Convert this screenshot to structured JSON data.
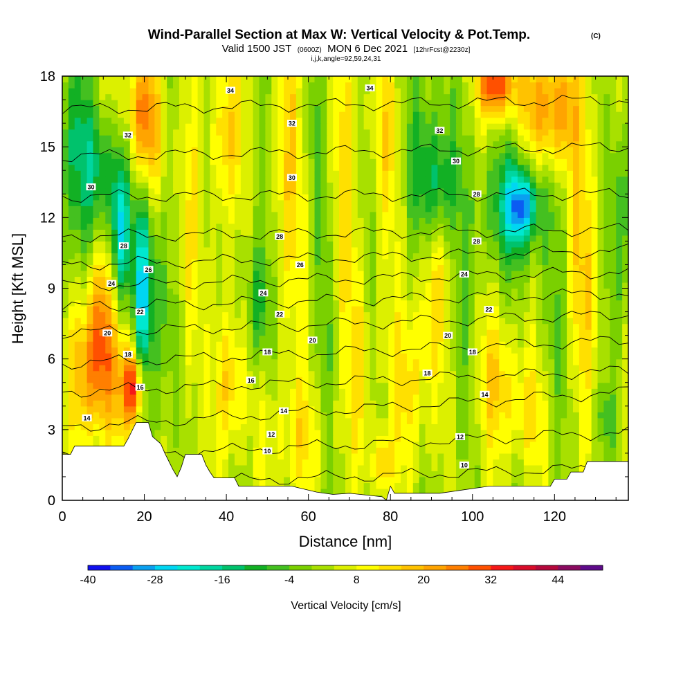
{
  "chart_data": {
    "type": "heatmap",
    "title": "Wind-Parallel Section at Max W: Vertical Velocity & Pot.Temp.",
    "title_mark": "(C)",
    "subtitle": "Valid 1500 JST",
    "subtitle_zulu": "(0600Z)",
    "subtitle_date": "MON 6 Dec 2021",
    "subtitle_fcst": "[12hrFcst@2230z]",
    "subtitle2": "i,j,k,angle=92,59,24,31",
    "xlabel": "Distance [nm]",
    "ylabel": "Height [Kft MSL]",
    "xlim": [
      0,
      138
    ],
    "ylim": [
      0,
      18
    ],
    "x_ticks": [
      0,
      20,
      40,
      60,
      80,
      100,
      120
    ],
    "y_ticks": [
      0,
      3,
      6,
      9,
      12,
      15,
      18
    ],
    "colorbar": {
      "label": "Vertical Velocity [cm/s]",
      "min": -40,
      "max": 52,
      "step": 4,
      "tick_values": [
        -40,
        -28,
        -16,
        -4,
        8,
        20,
        32,
        44
      ],
      "tick_labels": [
        "-40",
        "-28",
        "-16",
        "-4",
        "8",
        "20",
        "32",
        "44"
      ],
      "colors": [
        "#1010ee",
        "#0b5cf2",
        "#0aa0f0",
        "#00d6f2",
        "#00e8d0",
        "#00d6a0",
        "#00c26c",
        "#12b024",
        "#44c020",
        "#7ad000",
        "#a8e000",
        "#dcf000",
        "#ffff00",
        "#ffe000",
        "#ffc200",
        "#ffa400",
        "#ff7f00",
        "#ff5000",
        "#f51818",
        "#d80c2a",
        "#b4083c",
        "#8a0a60",
        "#5e0a8a"
      ]
    },
    "theta_contours": [
      {
        "value": 10,
        "at_x_zero": 0.6,
        "at_x_end": 1.4
      },
      {
        "value": 12,
        "at_x_zero": 1.8,
        "at_x_end": 2.9
      },
      {
        "value": 14,
        "at_x_zero": 3.1,
        "at_x_end": 4.6
      },
      {
        "value": 16,
        "at_x_zero": 4.6,
        "at_x_end": 5.5
      },
      {
        "value": 18,
        "at_x_zero": 5.8,
        "at_x_end": 6.8
      },
      {
        "value": 20,
        "at_x_zero": 7.1,
        "at_x_end": 7.9
      },
      {
        "value": 22,
        "at_x_zero": 8.2,
        "at_x_end": 8.8
      },
      {
        "value": 24,
        "at_x_zero": 9.1,
        "at_x_end": 9.7
      },
      {
        "value": 26,
        "at_x_zero": 10.0,
        "at_x_end": 10.6
      },
      {
        "value": 28,
        "at_x_zero": 11.2,
        "at_x_end": 11.5
      },
      {
        "value": 30,
        "at_x_zero": 12.9,
        "at_x_end": 13.0
      },
      {
        "value": 32,
        "at_x_zero": 14.6,
        "at_x_end": 15.0
      },
      {
        "value": 34,
        "at_x_zero": 16.6,
        "at_x_end": 17.0
      }
    ],
    "contour_labels": [
      {
        "text": "34",
        "x": 41,
        "y": 17.4
      },
      {
        "text": "34",
        "x": 75,
        "y": 17.5
      },
      {
        "text": "32",
        "x": 16,
        "y": 15.5
      },
      {
        "text": "32",
        "x": 56,
        "y": 16.0
      },
      {
        "text": "32",
        "x": 92,
        "y": 15.7
      },
      {
        "text": "30",
        "x": 7,
        "y": 13.3
      },
      {
        "text": "30",
        "x": 56,
        "y": 13.7
      },
      {
        "text": "30",
        "x": 96,
        "y": 14.4
      },
      {
        "text": "28",
        "x": 15,
        "y": 10.8
      },
      {
        "text": "28",
        "x": 53,
        "y": 11.2
      },
      {
        "text": "28",
        "x": 101,
        "y": 13.0
      },
      {
        "text": "28",
        "x": 101,
        "y": 11.0
      },
      {
        "text": "26",
        "x": 21,
        "y": 9.8
      },
      {
        "text": "26",
        "x": 58,
        "y": 10.0
      },
      {
        "text": "24",
        "x": 12,
        "y": 9.2
      },
      {
        "text": "24",
        "x": 49,
        "y": 8.8
      },
      {
        "text": "24",
        "x": 98,
        "y": 9.6
      },
      {
        "text": "22",
        "x": 19,
        "y": 8.0
      },
      {
        "text": "22",
        "x": 53,
        "y": 7.9
      },
      {
        "text": "22",
        "x": 104,
        "y": 8.1
      },
      {
        "text": "20",
        "x": 11,
        "y": 7.1
      },
      {
        "text": "20",
        "x": 61,
        "y": 6.8
      },
      {
        "text": "20",
        "x": 94,
        "y": 7.0
      },
      {
        "text": "18",
        "x": 16,
        "y": 6.2
      },
      {
        "text": "18",
        "x": 50,
        "y": 6.3
      },
      {
        "text": "18",
        "x": 100,
        "y": 6.3
      },
      {
        "text": "18",
        "x": 89,
        "y": 5.4
      },
      {
        "text": "16",
        "x": 19,
        "y": 4.8
      },
      {
        "text": "16",
        "x": 46,
        "y": 5.1
      },
      {
        "text": "14",
        "x": 6,
        "y": 3.5
      },
      {
        "text": "14",
        "x": 54,
        "y": 3.8
      },
      {
        "text": "14",
        "x": 103,
        "y": 4.5
      },
      {
        "text": "12",
        "x": 51,
        "y": 2.8
      },
      {
        "text": "12",
        "x": 97,
        "y": 2.7
      },
      {
        "text": "10",
        "x": 50,
        "y": 2.1
      },
      {
        "text": "10",
        "x": 98,
        "y": 1.5
      }
    ],
    "terrain": [
      [
        0,
        1.95
      ],
      [
        2,
        1.95
      ],
      [
        3,
        2.3
      ],
      [
        15,
        2.3
      ],
      [
        16,
        2.6
      ],
      [
        18,
        3.3
      ],
      [
        21,
        3.3
      ],
      [
        22,
        2.7
      ],
      [
        24,
        2.4
      ],
      [
        25,
        2.0
      ],
      [
        27,
        1.3
      ],
      [
        28,
        1.0
      ],
      [
        29,
        1.4
      ],
      [
        30,
        1.95
      ],
      [
        34,
        1.95
      ],
      [
        35,
        1.5
      ],
      [
        36,
        1.2
      ],
      [
        37,
        0.95
      ],
      [
        42,
        0.95
      ],
      [
        43,
        0.6
      ],
      [
        56,
        0.6
      ],
      [
        62,
        0.35
      ],
      [
        66,
        0.25
      ],
      [
        70,
        0.3
      ],
      [
        78,
        0.15
      ],
      [
        79,
        0.0
      ],
      [
        80,
        0.6
      ],
      [
        81,
        0.3
      ],
      [
        92,
        0.3
      ],
      [
        104,
        0.6
      ],
      [
        119,
        0.6
      ],
      [
        120,
        0.9
      ],
      [
        123,
        0.9
      ],
      [
        124,
        1.2
      ],
      [
        127,
        1.2
      ],
      [
        128,
        1.65
      ],
      [
        138,
        1.65
      ]
    ],
    "w_features": [
      {
        "x": 3,
        "y": 14.8,
        "sx": 3.5,
        "sy": 3.0,
        "w": -14
      },
      {
        "x": 10,
        "y": 14.0,
        "sx": 3,
        "sy": 2.2,
        "w": -22
      },
      {
        "x": 15,
        "y": 13.0,
        "sx": 2.2,
        "sy": 2.5,
        "w": -18
      },
      {
        "x": 19.5,
        "y": 9.0,
        "sx": 1.6,
        "sy": 3.5,
        "w": -28
      },
      {
        "x": 14,
        "y": 11.0,
        "sx": 1.4,
        "sy": 2.2,
        "w": -20
      },
      {
        "x": 8,
        "y": 5.5,
        "sx": 5.5,
        "sy": 2.2,
        "w": 20
      },
      {
        "x": 17.5,
        "y": 4.8,
        "sx": 1.8,
        "sy": 1.2,
        "w": 32
      },
      {
        "x": 15,
        "y": 14.5,
        "sx": 5,
        "sy": 3.0,
        "w": 15
      },
      {
        "x": 20,
        "y": 16.2,
        "sx": 2.5,
        "sy": 2,
        "w": 18
      },
      {
        "x": 9,
        "y": 8.0,
        "sx": 2,
        "sy": 2.5,
        "w": 14
      },
      {
        "x": 23,
        "y": 9,
        "sx": 1.8,
        "sy": 3,
        "w": -10
      },
      {
        "x": 26,
        "y": 6,
        "sx": 2,
        "sy": 4,
        "w": -6
      },
      {
        "x": 31,
        "y": 11,
        "sx": 2,
        "sy": 5,
        "w": 12
      },
      {
        "x": 35,
        "y": 14,
        "sx": 2,
        "sy": 4,
        "w": -8
      },
      {
        "x": 40,
        "y": 15.5,
        "sx": 3,
        "sy": 3,
        "w": 16
      },
      {
        "x": 41,
        "y": 5,
        "sx": 2.5,
        "sy": 2.2,
        "w": 15
      },
      {
        "x": 48,
        "y": 8.3,
        "sx": 1.8,
        "sy": 1.8,
        "w": -14
      },
      {
        "x": 47,
        "y": 14,
        "sx": 2.5,
        "sy": 5,
        "w": -5
      },
      {
        "x": 55,
        "y": 14,
        "sx": 3,
        "sy": 5,
        "w": 11
      },
      {
        "x": 57,
        "y": 2.6,
        "sx": 5,
        "sy": 1.8,
        "w": 9
      },
      {
        "x": 60,
        "y": 16,
        "sx": 2,
        "sy": 2,
        "w": -5
      },
      {
        "x": 64,
        "y": 9,
        "sx": 2,
        "sy": 5,
        "w": -6
      },
      {
        "x": 69,
        "y": 14,
        "sx": 3,
        "sy": 6,
        "w": 8
      },
      {
        "x": 73,
        "y": 6,
        "sx": 2,
        "sy": 3,
        "w": 10
      },
      {
        "x": 74,
        "y": 11,
        "sx": 2,
        "sy": 4,
        "w": -4
      },
      {
        "x": 78,
        "y": 1.5,
        "sx": 1.5,
        "sy": 0.9,
        "w": 16
      },
      {
        "x": 79,
        "y": 15.5,
        "sx": 3,
        "sy": 3,
        "w": 10
      },
      {
        "x": 88,
        "y": 16.5,
        "sx": 5,
        "sy": 3,
        "w": -6
      },
      {
        "x": 91,
        "y": 13.3,
        "sx": 3.5,
        "sy": 1.8,
        "w": -16
      },
      {
        "x": 91,
        "y": 9,
        "sx": 3,
        "sy": 2.5,
        "w": 9
      },
      {
        "x": 85,
        "y": 5,
        "sx": 4,
        "sy": 2.5,
        "w": 10
      },
      {
        "x": 97,
        "y": 6.5,
        "sx": 3,
        "sy": 3,
        "w": -6
      },
      {
        "x": 110,
        "y": 12.5,
        "sx": 6,
        "sy": 2,
        "w": -15
      },
      {
        "x": 112,
        "y": 12.5,
        "sx": 2.5,
        "sy": 1.0,
        "w": -25
      },
      {
        "x": 106,
        "y": 17.7,
        "sx": 3,
        "sy": 1.0,
        "w": 32
      },
      {
        "x": 119,
        "y": 16.6,
        "sx": 5,
        "sy": 1.8,
        "w": 22
      },
      {
        "x": 106,
        "y": 5,
        "sx": 5,
        "sy": 2,
        "w": 11
      },
      {
        "x": 114,
        "y": 3.5,
        "sx": 3,
        "sy": 1.5,
        "w": 9
      },
      {
        "x": 120,
        "y": 7,
        "sx": 3,
        "sy": 3,
        "w": -5
      },
      {
        "x": 127,
        "y": 10,
        "sx": 3,
        "sy": 4,
        "w": 12
      },
      {
        "x": 136,
        "y": 12,
        "sx": 2.2,
        "sy": 3,
        "w": -12
      },
      {
        "x": 132,
        "y": 3.5,
        "sx": 2,
        "sy": 1,
        "w": -8
      },
      {
        "x": 1,
        "y": 6,
        "sx": 1.5,
        "sy": 3,
        "w": -6
      }
    ]
  }
}
